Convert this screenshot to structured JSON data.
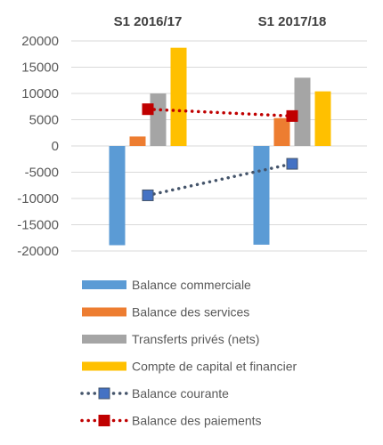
{
  "chart_data": {
    "type": "bar",
    "categories": [
      "S1 2016/17",
      "S1 2017/18"
    ],
    "ylim": [
      -20000,
      20000
    ],
    "yticks": [
      20000,
      15000,
      10000,
      5000,
      0,
      -5000,
      -10000,
      -15000,
      -20000
    ],
    "grid": true,
    "legend_position": "bottom",
    "series": [
      {
        "name": "Balance commerciale",
        "kind": "bar",
        "color": "#5B9BD5",
        "values": [
          -18900,
          -18800
        ]
      },
      {
        "name": "Balance des services",
        "kind": "bar",
        "color": "#ED7D31",
        "values": [
          1800,
          5300
        ]
      },
      {
        "name": "Transferts privés (nets)",
        "kind": "bar",
        "color": "#A5A5A5",
        "values": [
          10000,
          13000
        ]
      },
      {
        "name": "Compte de capital et financier",
        "kind": "bar",
        "color": "#FFC000",
        "values": [
          18700,
          10400
        ]
      },
      {
        "name": "Balance courante",
        "kind": "line",
        "style": "dotted",
        "color": "#44546A",
        "marker_color": "#4472C4",
        "values": [
          -9400,
          -3400
        ]
      },
      {
        "name": "Balance des paiements",
        "kind": "line",
        "style": "dotted",
        "color": "#C00000",
        "marker_color": "#C00000",
        "values": [
          7000,
          5700
        ]
      }
    ]
  }
}
